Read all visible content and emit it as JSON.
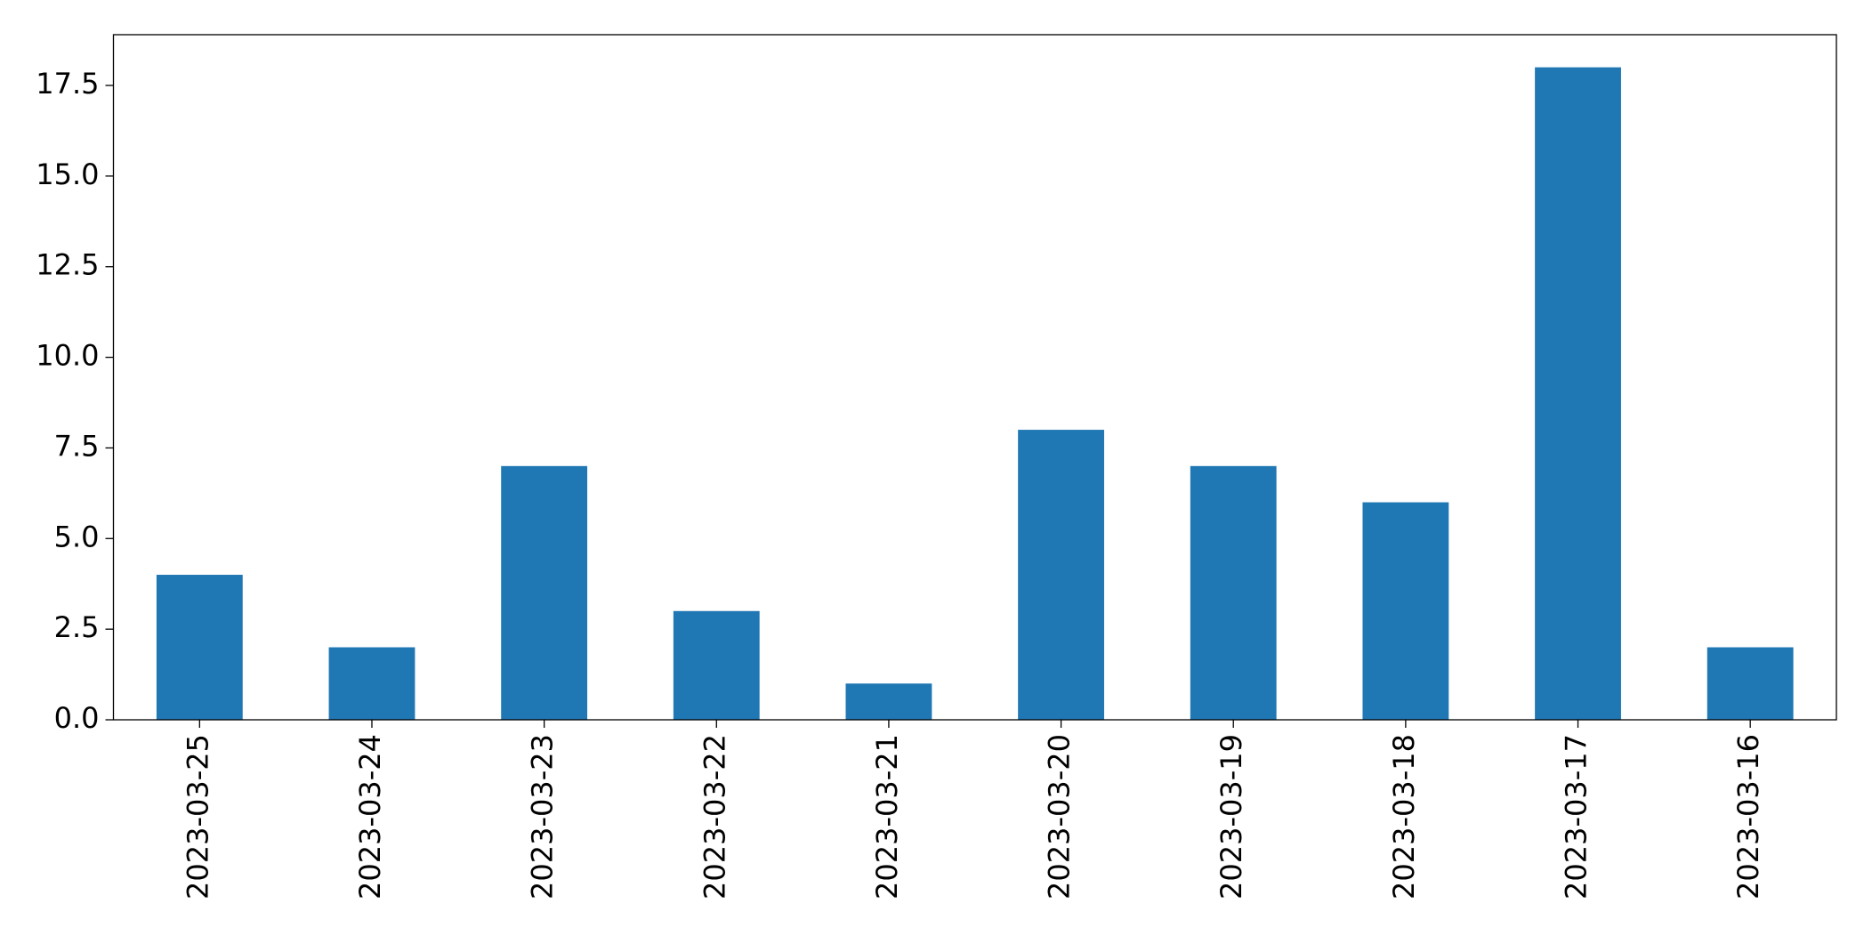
{
  "chart_data": {
    "type": "bar",
    "categories": [
      "2023-03-25",
      "2023-03-24",
      "2023-03-23",
      "2023-03-22",
      "2023-03-21",
      "2023-03-20",
      "2023-03-19",
      "2023-03-18",
      "2023-03-17",
      "2023-03-16"
    ],
    "values": [
      4,
      2,
      7,
      3,
      1,
      8,
      7,
      6,
      18,
      2
    ],
    "color": "#1f77b4",
    "ylim": [
      0,
      18.9
    ],
    "yticks": [
      {
        "value": 0,
        "label": "0.0"
      },
      2.5,
      {
        "value": 5,
        "label": "5.0"
      },
      7.5,
      {
        "value": 10,
        "label": "10.0"
      },
      12.5,
      {
        "value": 15,
        "label": "15.0"
      },
      17.5
    ],
    "grid": false
  }
}
